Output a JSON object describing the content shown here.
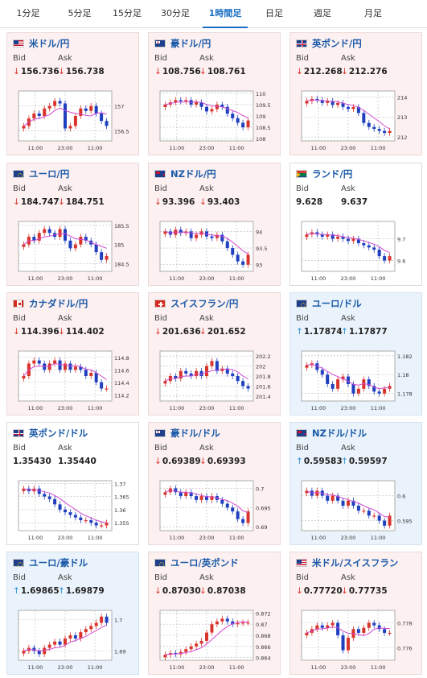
{
  "tabs": [
    {
      "label": "1分足",
      "active": false
    },
    {
      "label": "5分足",
      "active": false
    },
    {
      "label": "15分足",
      "active": false
    },
    {
      "label": "30分足",
      "active": false
    },
    {
      "label": "1時間足",
      "active": true
    },
    {
      "label": "日足",
      "active": false
    },
    {
      "label": "週足",
      "active": false
    },
    {
      "label": "月足",
      "active": false
    }
  ],
  "labels": {
    "bid": "Bid",
    "ask": "Ask"
  },
  "colors": {
    "down_card": "#fdf0f0",
    "up_card": "#eaf3fb",
    "pair_text": "#1a5aa8",
    "down_arrow": "#d9342b",
    "up_arrow": "#2a8fd2",
    "candle_up": "#d9342b",
    "candle_down": "#1f3fbf",
    "ma": "#d24bd2",
    "active_tab": "#1a6fc4"
  },
  "cards": [
    {
      "pair": "米ドル/円",
      "flag": "us",
      "trend": "down",
      "bid": "156.736",
      "ask": "156.738",
      "chart_data": {
        "type": "candlestick",
        "x_ticks": [
          "11:00",
          "23:00",
          "11:00"
        ],
        "y_ticks": [
          "157",
          "156.5"
        ],
        "y_range": [
          156.3,
          157.3
        ],
        "series": [
          156.6,
          156.75,
          156.85,
          156.8,
          156.95,
          157.0,
          157.1,
          157.05,
          156.55,
          156.6,
          156.8,
          156.95,
          156.9,
          157.0,
          156.85,
          156.7,
          156.6
        ]
      }
    },
    {
      "pair": "豪ドル/円",
      "flag": "au",
      "trend": "down",
      "bid": "108.756",
      "ask": "108.761",
      "chart_data": {
        "type": "candlestick",
        "x_ticks": [
          "11:00",
          "23:00",
          "11:00"
        ],
        "y_ticks": [
          "110",
          "109.5",
          "109",
          "108.5",
          "108"
        ],
        "y_range": [
          107.9,
          110.1
        ],
        "series": [
          109.5,
          109.6,
          109.7,
          109.65,
          109.7,
          109.5,
          109.6,
          109.4,
          109.2,
          109.3,
          109.5,
          109.4,
          109.1,
          108.9,
          108.7,
          108.5,
          108.8
        ]
      }
    },
    {
      "pair": "英ポンド/円",
      "flag": "gb",
      "trend": "down",
      "bid": "212.268",
      "ask": "212.276",
      "chart_data": {
        "type": "candlestick",
        "x_ticks": [
          "11:00",
          "23:00",
          "11:00"
        ],
        "y_ticks": [
          "214",
          "213",
          "212"
        ],
        "y_range": [
          211.8,
          214.3
        ],
        "series": [
          213.8,
          213.9,
          213.85,
          213.7,
          213.8,
          213.6,
          213.7,
          213.5,
          213.4,
          213.5,
          213.2,
          212.7,
          212.5,
          212.4,
          212.3,
          212.2,
          212.3
        ]
      }
    },
    {
      "pair": "ユーロ/円",
      "flag": "eu",
      "trend": "down",
      "bid": "184.747",
      "ask": "184.751",
      "chart_data": {
        "type": "candlestick",
        "x_ticks": [
          "11:00",
          "23:00",
          "11:00"
        ],
        "y_ticks": [
          "185.5",
          "185",
          "184.5"
        ],
        "y_range": [
          184.3,
          185.6
        ],
        "series": [
          185.0,
          185.2,
          185.1,
          185.3,
          185.4,
          185.3,
          185.2,
          185.4,
          185.1,
          184.9,
          185.0,
          185.2,
          185.1,
          185.0,
          184.8,
          184.6,
          184.7
        ]
      }
    },
    {
      "pair": "NZドル/円",
      "flag": "nz",
      "trend": "down",
      "bid": "93.396",
      "ask": "93.403",
      "chart_data": {
        "type": "candlestick",
        "x_ticks": [
          "11:00",
          "23:00",
          "11:00"
        ],
        "y_ticks": [
          "94",
          "93.5",
          "93"
        ],
        "y_range": [
          92.8,
          94.3
        ],
        "series": [
          94.0,
          93.9,
          94.05,
          93.95,
          94.0,
          93.8,
          93.9,
          94.0,
          93.85,
          93.8,
          93.9,
          93.7,
          93.5,
          93.3,
          93.1,
          93.0,
          93.3
        ]
      }
    },
    {
      "pair": "ランド/円",
      "flag": "za",
      "trend": "flat",
      "bid": "9.628",
      "ask": "9.637",
      "chart_data": {
        "type": "candlestick",
        "x_ticks": [
          "11:00",
          "23:00",
          "11:00"
        ],
        "y_ticks": [
          "9.7",
          "9.6"
        ],
        "y_range": [
          9.55,
          9.78
        ],
        "series": [
          9.72,
          9.73,
          9.72,
          9.71,
          9.72,
          9.7,
          9.71,
          9.7,
          9.69,
          9.7,
          9.68,
          9.67,
          9.66,
          9.65,
          9.62,
          9.6,
          9.62
        ]
      }
    },
    {
      "pair": "カナダドル/円",
      "flag": "ca",
      "trend": "down",
      "bid": "114.396",
      "ask": "114.402",
      "chart_data": {
        "type": "candlestick",
        "x_ticks": [
          "11:00",
          "23:00",
          "11:00"
        ],
        "y_ticks": [
          "114.8",
          "114.6",
          "114.4",
          "114.2"
        ],
        "y_range": [
          114.1,
          114.9
        ],
        "series": [
          114.5,
          114.7,
          114.75,
          114.7,
          114.6,
          114.7,
          114.75,
          114.6,
          114.7,
          114.6,
          114.65,
          114.6,
          114.5,
          114.55,
          114.4,
          114.3,
          114.3
        ]
      }
    },
    {
      "pair": "スイスフラン/円",
      "flag": "ch",
      "trend": "down",
      "bid": "201.636",
      "ask": "201.652",
      "chart_data": {
        "type": "candlestick",
        "x_ticks": [
          "11:00",
          "23:00",
          "11:00"
        ],
        "y_ticks": [
          "202.2",
          "202",
          "201.8",
          "201.6",
          "201.4"
        ],
        "y_range": [
          201.3,
          202.3
        ],
        "series": [
          201.7,
          201.8,
          201.75,
          201.9,
          201.85,
          201.8,
          201.9,
          201.8,
          202.0,
          202.1,
          201.9,
          201.95,
          201.85,
          201.8,
          201.7,
          201.6,
          201.55
        ]
      }
    },
    {
      "pair": "ユーロ/ドル",
      "flag": "eu",
      "trend": "up",
      "bid": "1.17874",
      "ask": "1.17877",
      "chart_data": {
        "type": "candlestick",
        "x_ticks": [
          "11:00",
          "23:00",
          "11:00"
        ],
        "y_ticks": [
          "1.182",
          "1.18",
          "1.178"
        ],
        "y_range": [
          1.1772,
          1.1825
        ],
        "series": [
          1.181,
          1.1812,
          1.1805,
          1.18,
          1.179,
          1.1785,
          1.1795,
          1.1798,
          1.179,
          1.178,
          1.1785,
          1.1795,
          1.1788,
          1.1782,
          1.178,
          1.1785,
          1.1788
        ]
      }
    },
    {
      "pair": "英ポンド/ドル",
      "flag": "gb",
      "trend": "flat",
      "bid": "1.35430",
      "ask": "1.35440",
      "chart_data": {
        "type": "candlestick",
        "x_ticks": [
          "11:00",
          "23:00",
          "11:00"
        ],
        "y_ticks": [
          "1.37",
          "1.365",
          "1.36",
          "1.355"
        ],
        "y_range": [
          1.352,
          1.371
        ],
        "series": [
          1.368,
          1.367,
          1.368,
          1.366,
          1.365,
          1.364,
          1.362,
          1.36,
          1.359,
          1.358,
          1.357,
          1.356,
          1.356,
          1.355,
          1.354,
          1.354,
          1.355
        ]
      }
    },
    {
      "pair": "豪ドル/ドル",
      "flag": "au",
      "trend": "down",
      "bid": "0.69389",
      "ask": "0.69393",
      "chart_data": {
        "type": "candlestick",
        "x_ticks": [
          "11:00",
          "23:00",
          "11:00"
        ],
        "y_ticks": [
          "0.7",
          "0.695",
          "0.69"
        ],
        "y_range": [
          0.689,
          0.702
        ],
        "series": [
          0.699,
          0.7,
          0.699,
          0.698,
          0.699,
          0.698,
          0.697,
          0.698,
          0.697,
          0.698,
          0.697,
          0.696,
          0.695,
          0.694,
          0.692,
          0.691,
          0.694
        ]
      }
    },
    {
      "pair": "NZドル/ドル",
      "flag": "nz",
      "trend": "up",
      "bid": "0.59583",
      "ask": "0.59597",
      "chart_data": {
        "type": "candlestick",
        "x_ticks": [
          "11:00",
          "23:00",
          "11:00"
        ],
        "y_ticks": [
          "0.6",
          "0.595"
        ],
        "y_range": [
          0.593,
          0.603
        ],
        "series": [
          0.601,
          0.6,
          0.601,
          0.6,
          0.599,
          0.6,
          0.599,
          0.598,
          0.599,
          0.598,
          0.597,
          0.597,
          0.596,
          0.596,
          0.595,
          0.594,
          0.596
        ]
      }
    },
    {
      "pair": "ユーロ/豪ドル",
      "flag": "eu",
      "trend": "up",
      "bid": "1.69865",
      "ask": "1.69879",
      "chart_data": {
        "type": "candlestick",
        "x_ticks": [
          "11:00",
          "23:00",
          "11:00"
        ],
        "y_ticks": [
          "1.7",
          "1.69"
        ],
        "y_range": [
          1.687,
          1.703
        ],
        "series": [
          1.69,
          1.691,
          1.69,
          1.689,
          1.691,
          1.692,
          1.693,
          1.692,
          1.694,
          1.695,
          1.694,
          1.696,
          1.697,
          1.698,
          1.699,
          1.701,
          1.699
        ]
      }
    },
    {
      "pair": "ユーロ/英ポンド",
      "flag": "eu",
      "trend": "down",
      "bid": "0.87030",
      "ask": "0.87038",
      "chart_data": {
        "type": "candlestick",
        "x_ticks": [
          "11:00",
          "23:00",
          "11:00"
        ],
        "y_ticks": [
          "0.872",
          "0.87",
          "0.868",
          "0.866",
          "0.864"
        ],
        "y_range": [
          0.8635,
          0.8725
        ],
        "series": [
          0.8645,
          0.8648,
          0.8646,
          0.865,
          0.8655,
          0.866,
          0.8665,
          0.867,
          0.8685,
          0.87,
          0.8705,
          0.871,
          0.8705,
          0.87,
          0.8702,
          0.8703,
          0.8703
        ]
      }
    },
    {
      "pair": "米ドル/スイスフラン",
      "flag": "us",
      "trend": "down",
      "bid": "0.77720",
      "ask": "0.77735",
      "chart_data": {
        "type": "candlestick",
        "x_ticks": [
          "11:00",
          "23:00",
          "11:00"
        ],
        "y_ticks": [
          "0.778",
          "0.776"
        ],
        "y_range": [
          0.775,
          0.779
        ],
        "series": [
          0.7772,
          0.7775,
          0.7778,
          0.7776,
          0.7778,
          0.778,
          0.777,
          0.7758,
          0.7768,
          0.7775,
          0.7772,
          0.7776,
          0.778,
          0.7778,
          0.7775,
          0.7772,
          0.7772
        ]
      }
    }
  ]
}
